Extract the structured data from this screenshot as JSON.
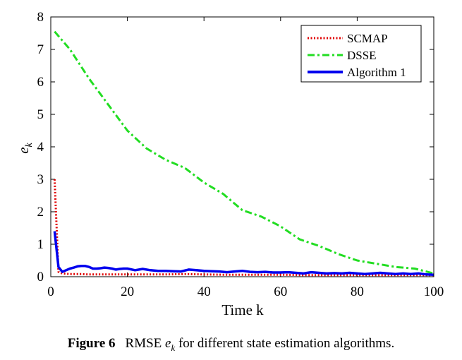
{
  "chart_data": {
    "type": "line",
    "xlabel": "Time k",
    "ylabel": "e",
    "ylabel_sub": "k",
    "xlim": [
      0,
      100
    ],
    "ylim": [
      0,
      8
    ],
    "xticks": [
      0,
      20,
      40,
      60,
      80,
      100
    ],
    "yticks": [
      0,
      1,
      2,
      3,
      4,
      5,
      6,
      7,
      8
    ],
    "legend_position": "top-right",
    "series": [
      {
        "name": "SCMAP",
        "color": "#e00000",
        "style": "dotted",
        "x": [
          1,
          2,
          3,
          4,
          5,
          6,
          8,
          10,
          15,
          20,
          25,
          30,
          35,
          40,
          45,
          50,
          55,
          60,
          65,
          70,
          75,
          80,
          85,
          90,
          95,
          100
        ],
        "y": [
          3.0,
          0.15,
          0.1,
          0.09,
          0.08,
          0.08,
          0.08,
          0.07,
          0.07,
          0.07,
          0.07,
          0.07,
          0.08,
          0.07,
          0.06,
          0.06,
          0.06,
          0.06,
          0.05,
          0.05,
          0.05,
          0.05,
          0.05,
          0.05,
          0.05,
          0.05
        ]
      },
      {
        "name": "DSSE",
        "color": "#22dd22",
        "style": "dashdot",
        "x": [
          1,
          5,
          10,
          15,
          20,
          25,
          30,
          35,
          40,
          45,
          50,
          55,
          60,
          65,
          70,
          75,
          80,
          85,
          90,
          95,
          100
        ],
        "y": [
          7.55,
          7.0,
          6.1,
          5.3,
          4.5,
          3.95,
          3.6,
          3.35,
          2.9,
          2.55,
          2.05,
          1.85,
          1.55,
          1.15,
          0.95,
          0.7,
          0.5,
          0.4,
          0.3,
          0.25,
          0.1
        ]
      },
      {
        "name": "Algorithm 1",
        "color": "#0000ee",
        "style": "solid",
        "x": [
          1,
          2,
          3,
          4,
          5,
          6,
          7,
          8,
          9,
          10,
          11,
          12,
          13,
          14,
          15,
          16,
          17,
          18,
          19,
          20,
          22,
          24,
          26,
          28,
          30,
          32,
          34,
          36,
          38,
          40,
          42,
          44,
          46,
          48,
          50,
          52,
          54,
          56,
          58,
          60,
          62,
          64,
          66,
          68,
          70,
          72,
          74,
          76,
          78,
          80,
          82,
          84,
          86,
          88,
          90,
          92,
          94,
          96,
          98,
          100
        ],
        "y": [
          1.4,
          0.3,
          0.15,
          0.2,
          0.25,
          0.28,
          0.32,
          0.33,
          0.33,
          0.3,
          0.25,
          0.25,
          0.26,
          0.28,
          0.27,
          0.25,
          0.22,
          0.24,
          0.25,
          0.25,
          0.2,
          0.24,
          0.2,
          0.18,
          0.18,
          0.17,
          0.16,
          0.22,
          0.2,
          0.18,
          0.17,
          0.16,
          0.14,
          0.16,
          0.18,
          0.15,
          0.14,
          0.15,
          0.13,
          0.13,
          0.14,
          0.12,
          0.1,
          0.14,
          0.12,
          0.1,
          0.11,
          0.1,
          0.12,
          0.1,
          0.08,
          0.1,
          0.12,
          0.1,
          0.08,
          0.1,
          0.08,
          0.1,
          0.07,
          0.06
        ]
      }
    ]
  },
  "caption": {
    "label": "Figure 6",
    "text_before": "RMSE",
    "var": "e",
    "var_sub": "k",
    "text_after": "for different state estimation algorithms."
  }
}
